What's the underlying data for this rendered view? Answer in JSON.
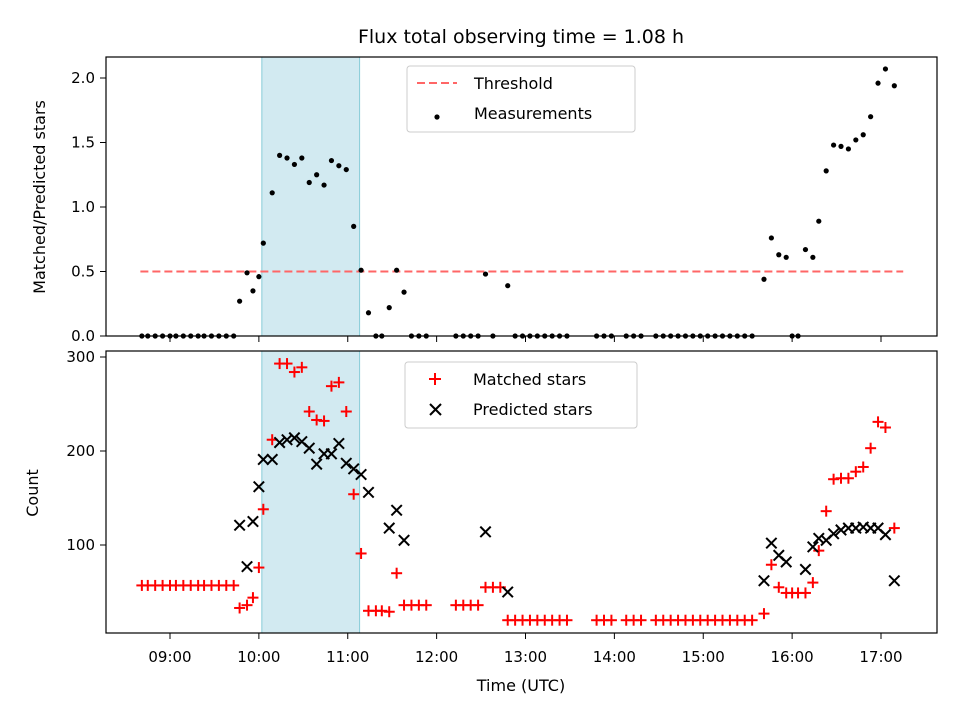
{
  "chart_data": [
    {
      "type": "scatter",
      "title": "Flux total observing time = 1.08 h",
      "xlabel": "",
      "ylabel": "Matched/Predicted stars",
      "ylim": [
        0,
        2.2
      ],
      "yticks": [
        0.0,
        0.5,
        1.0,
        1.5,
        2.0
      ],
      "ytick_labels": [
        "0.0",
        "0.5",
        "1.0",
        "1.5",
        "2.0"
      ],
      "xlim": [
        "08:35",
        "17:40"
      ],
      "grid": false,
      "legend_placement": "top-center",
      "shaded_interval": {
        "start": "10:02",
        "end": "11:08",
        "color": "#add8e6"
      },
      "threshold": {
        "name": "Threshold",
        "value": 0.5,
        "x_start": "08:40",
        "x_end": "17:15",
        "color": "#ff6666",
        "style": "dashed"
      },
      "series": [
        {
          "name": "Measurements",
          "color": "#000000",
          "marker": "dot",
          "points": [
            [
              "08:41",
              0
            ],
            [
              "08:45",
              0
            ],
            [
              "08:50",
              0
            ],
            [
              "08:55",
              0
            ],
            [
              "09:00",
              0
            ],
            [
              "09:04",
              0
            ],
            [
              "09:09",
              0
            ],
            [
              "09:14",
              0
            ],
            [
              "09:19",
              0
            ],
            [
              "09:23",
              0
            ],
            [
              "09:28",
              0
            ],
            [
              "09:33",
              0
            ],
            [
              "09:38",
              0
            ],
            [
              "09:43",
              0
            ],
            [
              "09:47",
              0.27
            ],
            [
              "09:52",
              0.49
            ],
            [
              "09:56",
              0.35
            ],
            [
              "10:00",
              0.46
            ],
            [
              "10:03",
              0.72
            ],
            [
              "10:09",
              1.11
            ],
            [
              "10:14",
              1.4
            ],
            [
              "10:19",
              1.38
            ],
            [
              "10:24",
              1.33
            ],
            [
              "10:29",
              1.38
            ],
            [
              "10:34",
              1.19
            ],
            [
              "10:39",
              1.25
            ],
            [
              "10:44",
              1.17
            ],
            [
              "10:49",
              1.36
            ],
            [
              "10:54",
              1.32
            ],
            [
              "10:59",
              1.29
            ],
            [
              "11:04",
              0.85
            ],
            [
              "11:09",
              0.51
            ],
            [
              "11:14",
              0.18
            ],
            [
              "11:19",
              0
            ],
            [
              "11:23",
              0
            ],
            [
              "11:28",
              0.22
            ],
            [
              "11:33",
              0.51
            ],
            [
              "11:38",
              0.34
            ],
            [
              "11:43",
              0
            ],
            [
              "11:48",
              0
            ],
            [
              "11:53",
              0
            ],
            [
              "12:13",
              0
            ],
            [
              "12:18",
              0
            ],
            [
              "12:23",
              0
            ],
            [
              "12:28",
              0
            ],
            [
              "12:33",
              0.48
            ],
            [
              "12:38",
              0
            ],
            [
              "12:48",
              0.39
            ],
            [
              "12:53",
              0
            ],
            [
              "12:58",
              0
            ],
            [
              "13:03",
              0
            ],
            [
              "13:08",
              0
            ],
            [
              "13:13",
              0
            ],
            [
              "13:18",
              0
            ],
            [
              "13:23",
              0
            ],
            [
              "13:28",
              0
            ],
            [
              "13:48",
              0
            ],
            [
              "13:53",
              0
            ],
            [
              "13:58",
              0
            ],
            [
              "14:08",
              0
            ],
            [
              "14:13",
              0
            ],
            [
              "14:18",
              0
            ],
            [
              "14:28",
              0
            ],
            [
              "14:33",
              0
            ],
            [
              "14:38",
              0
            ],
            [
              "14:43",
              0
            ],
            [
              "14:48",
              0
            ],
            [
              "14:53",
              0
            ],
            [
              "14:58",
              0
            ],
            [
              "15:03",
              0
            ],
            [
              "15:08",
              0
            ],
            [
              "15:13",
              0
            ],
            [
              "15:18",
              0
            ],
            [
              "15:23",
              0
            ],
            [
              "15:28",
              0
            ],
            [
              "15:33",
              0
            ],
            [
              "15:41",
              0.44
            ],
            [
              "15:46",
              0.76
            ],
            [
              "15:51",
              0.63
            ],
            [
              "15:56",
              0.61
            ],
            [
              "16:00",
              0
            ],
            [
              "16:04",
              0
            ],
            [
              "16:09",
              0.67
            ],
            [
              "16:14",
              0.61
            ],
            [
              "16:18",
              0.89
            ],
            [
              "16:23",
              1.28
            ],
            [
              "16:28",
              1.48
            ],
            [
              "16:33",
              1.47
            ],
            [
              "16:38",
              1.45
            ],
            [
              "16:43",
              1.52
            ],
            [
              "16:48",
              1.56
            ],
            [
              "16:53",
              1.7
            ],
            [
              "16:58",
              1.96
            ],
            [
              "17:03",
              2.07
            ],
            [
              "17:09",
              1.94
            ]
          ]
        }
      ],
      "legend": [
        "Threshold",
        "Measurements"
      ]
    },
    {
      "type": "scatter",
      "title": "",
      "xlabel": "Time (UTC)",
      "ylabel": "Count",
      "ylim": [
        5,
        305
      ],
      "yticks": [
        100,
        200,
        300
      ],
      "ytick_labels": [
        "100",
        "200",
        "300"
      ],
      "xticks": [
        "09:00",
        "10:00",
        "11:00",
        "12:00",
        "13:00",
        "14:00",
        "15:00",
        "16:00",
        "17:00"
      ],
      "xtick_labels": [
        "09:00",
        "10:00",
        "11:00",
        "12:00",
        "13:00",
        "14:00",
        "15:00",
        "16:00",
        "17:00"
      ],
      "xlim": [
        "08:35",
        "17:40"
      ],
      "grid": false,
      "legend_placement": "top-center",
      "shaded_interval": {
        "start": "10:02",
        "end": "11:08",
        "color": "#add8e6"
      },
      "series": [
        {
          "name": "Matched stars",
          "color": "#ff0000",
          "marker": "plus",
          "points": [
            [
              "08:41",
              57
            ],
            [
              "08:45",
              57
            ],
            [
              "08:50",
              57
            ],
            [
              "08:55",
              57
            ],
            [
              "09:00",
              57
            ],
            [
              "09:04",
              57
            ],
            [
              "09:09",
              57
            ],
            [
              "09:14",
              57
            ],
            [
              "09:19",
              57
            ],
            [
              "09:23",
              57
            ],
            [
              "09:28",
              57
            ],
            [
              "09:33",
              57
            ],
            [
              "09:38",
              57
            ],
            [
              "09:43",
              57
            ],
            [
              "09:47",
              33
            ],
            [
              "09:52",
              36
            ],
            [
              "09:56",
              44
            ],
            [
              "10:00",
              76
            ],
            [
              "10:03",
              138
            ],
            [
              "10:09",
              212
            ],
            [
              "10:14",
              293
            ],
            [
              "10:19",
              293
            ],
            [
              "10:24",
              284
            ],
            [
              "10:29",
              289
            ],
            [
              "10:34",
              242
            ],
            [
              "10:39",
              233
            ],
            [
              "10:44",
              232
            ],
            [
              "10:49",
              269
            ],
            [
              "10:54",
              273
            ],
            [
              "10:59",
              242
            ],
            [
              "11:04",
              154
            ],
            [
              "11:09",
              91
            ],
            [
              "11:14",
              30
            ],
            [
              "11:19",
              30
            ],
            [
              "11:23",
              30
            ],
            [
              "11:28",
              29
            ],
            [
              "11:33",
              70
            ],
            [
              "11:38",
              36
            ],
            [
              "11:43",
              36
            ],
            [
              "11:48",
              36
            ],
            [
              "11:53",
              36
            ],
            [
              "12:13",
              36
            ],
            [
              "12:18",
              36
            ],
            [
              "12:23",
              36
            ],
            [
              "12:28",
              36
            ],
            [
              "12:33",
              55
            ],
            [
              "12:38",
              55
            ],
            [
              "12:43",
              55
            ],
            [
              "12:48",
              20
            ],
            [
              "12:53",
              20
            ],
            [
              "12:58",
              20
            ],
            [
              "13:03",
              20
            ],
            [
              "13:08",
              20
            ],
            [
              "13:13",
              20
            ],
            [
              "13:18",
              20
            ],
            [
              "13:23",
              20
            ],
            [
              "13:28",
              20
            ],
            [
              "13:48",
              20
            ],
            [
              "13:53",
              20
            ],
            [
              "13:58",
              20
            ],
            [
              "14:08",
              20
            ],
            [
              "14:13",
              20
            ],
            [
              "14:18",
              20
            ],
            [
              "14:28",
              20
            ],
            [
              "14:33",
              20
            ],
            [
              "14:38",
              20
            ],
            [
              "14:43",
              20
            ],
            [
              "14:48",
              20
            ],
            [
              "14:53",
              20
            ],
            [
              "14:58",
              20
            ],
            [
              "15:03",
              20
            ],
            [
              "15:08",
              20
            ],
            [
              "15:13",
              20
            ],
            [
              "15:18",
              20
            ],
            [
              "15:23",
              20
            ],
            [
              "15:28",
              20
            ],
            [
              "15:33",
              20
            ],
            [
              "15:41",
              27
            ],
            [
              "15:46",
              79
            ],
            [
              "15:51",
              55
            ],
            [
              "15:56",
              49
            ],
            [
              "16:00",
              49
            ],
            [
              "16:04",
              49
            ],
            [
              "16:09",
              49
            ],
            [
              "16:14",
              60
            ],
            [
              "16:18",
              94
            ],
            [
              "16:23",
              136
            ],
            [
              "16:28",
              170
            ],
            [
              "16:33",
              171
            ],
            [
              "16:38",
              171
            ],
            [
              "16:43",
              178
            ],
            [
              "16:48",
              183
            ],
            [
              "16:53",
              203
            ],
            [
              "16:58",
              231
            ],
            [
              "17:03",
              225
            ],
            [
              "17:09",
              118
            ]
          ]
        },
        {
          "name": "Predicted stars",
          "color": "#000000",
          "marker": "x",
          "points": [
            [
              "09:47",
              121
            ],
            [
              "09:52",
              77
            ],
            [
              "09:56",
              125
            ],
            [
              "10:00",
              162
            ],
            [
              "10:03",
              191
            ],
            [
              "10:09",
              191
            ],
            [
              "10:14",
              209
            ],
            [
              "10:19",
              212
            ],
            [
              "10:24",
              214
            ],
            [
              "10:29",
              210
            ],
            [
              "10:34",
              203
            ],
            [
              "10:39",
              186
            ],
            [
              "10:44",
              197
            ],
            [
              "10:49",
              197
            ],
            [
              "10:54",
              208
            ],
            [
              "10:59",
              187
            ],
            [
              "11:04",
              181
            ],
            [
              "11:09",
              175
            ],
            [
              "11:14",
              156
            ],
            [
              "11:28",
              118
            ],
            [
              "11:33",
              137
            ],
            [
              "11:38",
              105
            ],
            [
              "12:33",
              114
            ],
            [
              "12:48",
              50
            ],
            [
              "15:41",
              62
            ],
            [
              "15:46",
              102
            ],
            [
              "15:51",
              89
            ],
            [
              "15:56",
              82
            ],
            [
              "16:09",
              74
            ],
            [
              "16:14",
              98
            ],
            [
              "16:18",
              107
            ],
            [
              "16:23",
              105
            ],
            [
              "16:28",
              112
            ],
            [
              "16:33",
              116
            ],
            [
              "16:38",
              118
            ],
            [
              "16:43",
              118
            ],
            [
              "16:48",
              119
            ],
            [
              "16:53",
              118
            ],
            [
              "16:58",
              118
            ],
            [
              "17:03",
              111
            ],
            [
              "17:09",
              62
            ]
          ]
        }
      ],
      "legend": [
        "Matched stars",
        "Predicted stars"
      ]
    }
  ]
}
